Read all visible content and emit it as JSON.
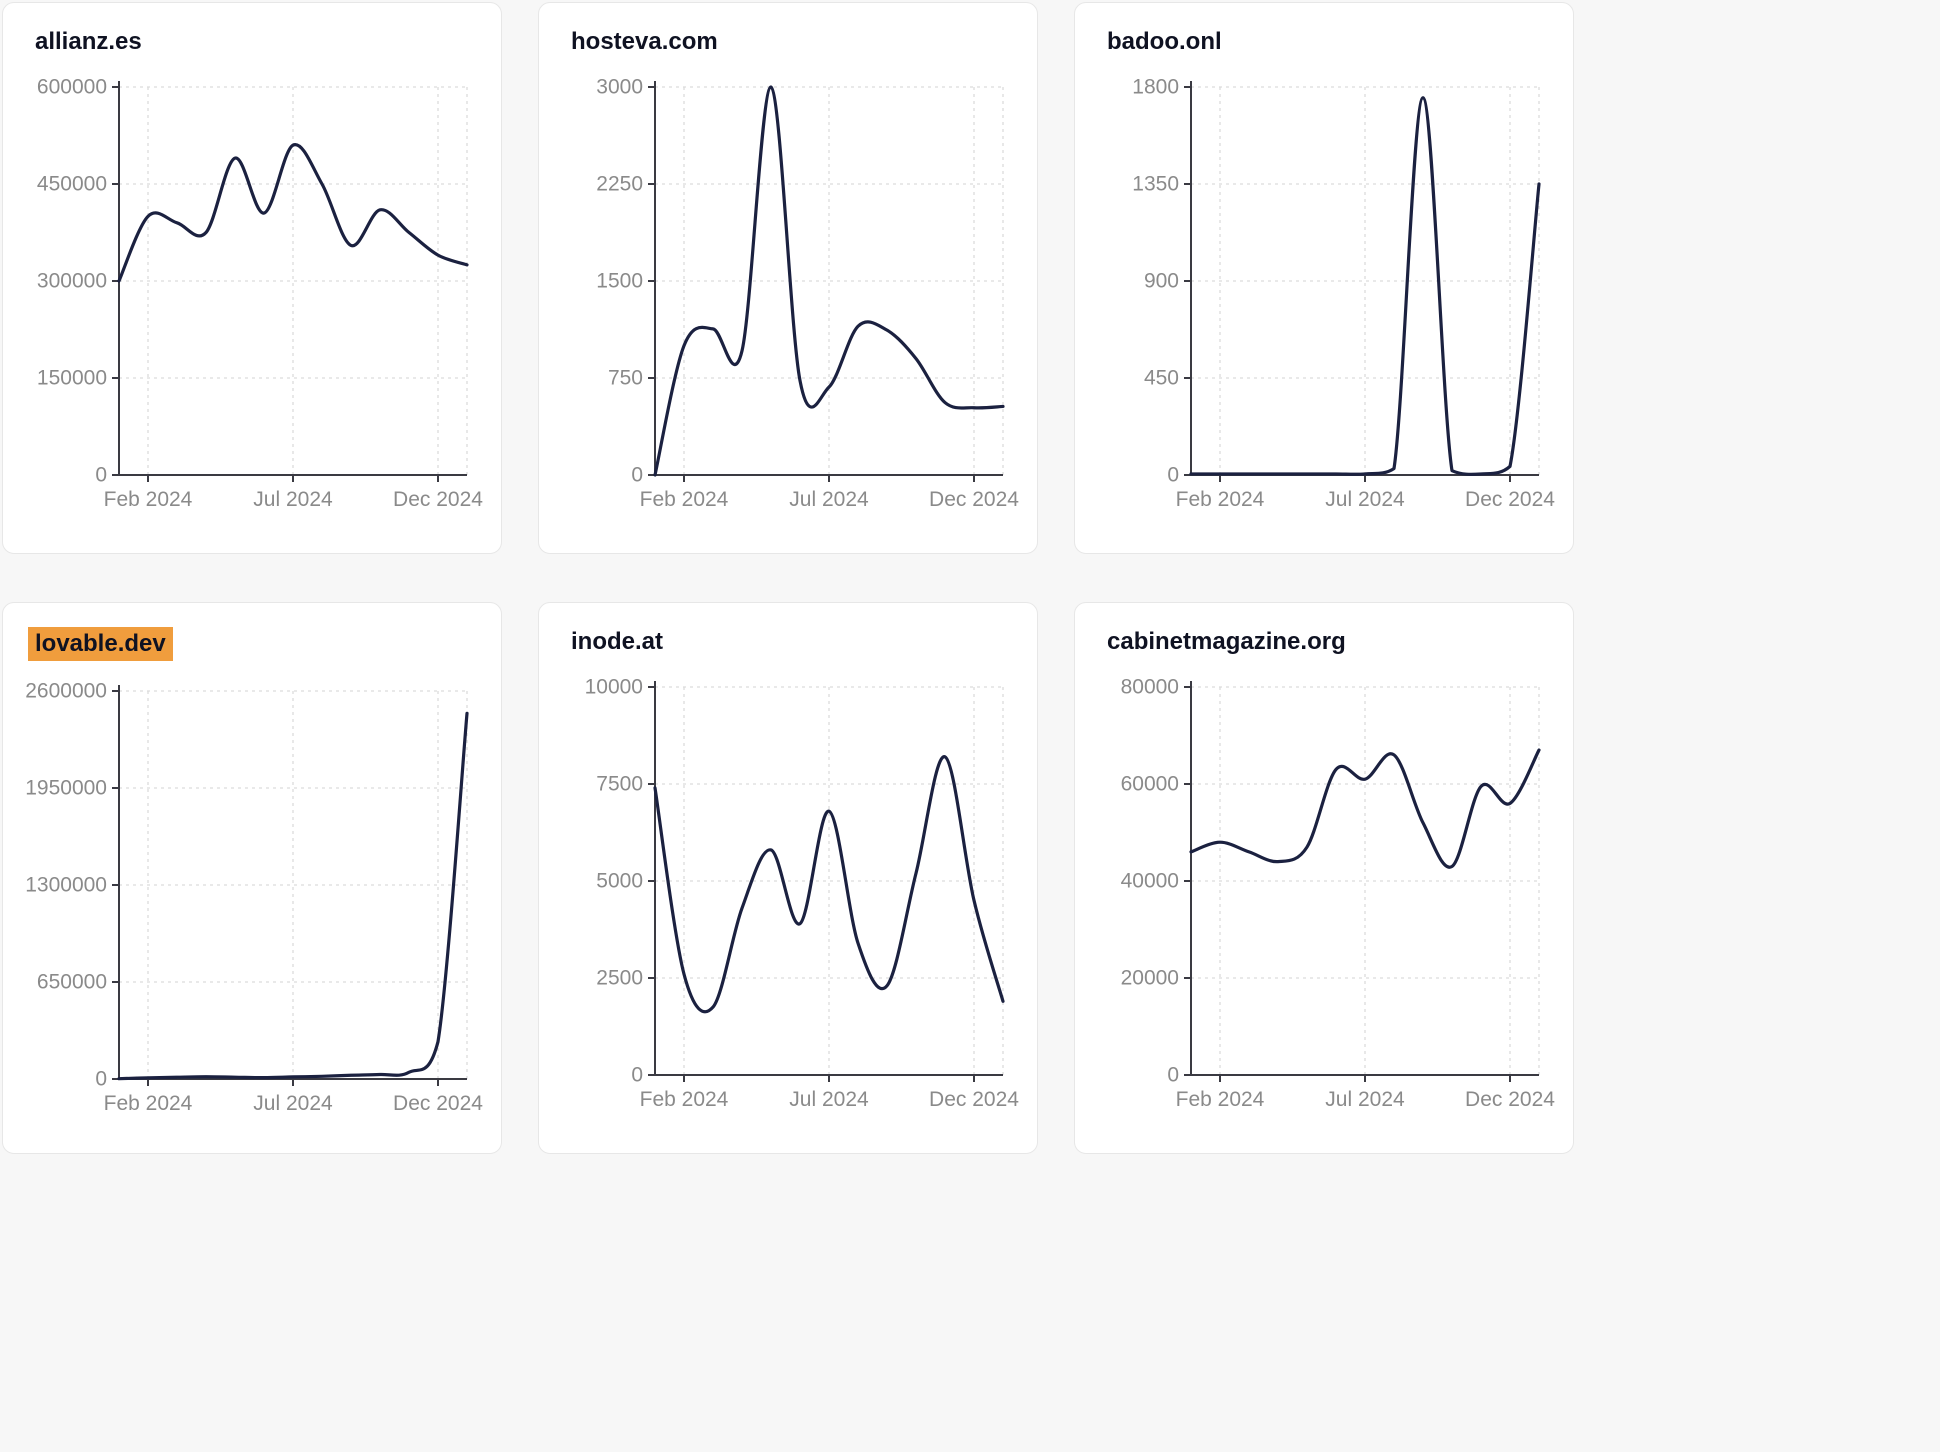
{
  "style": {
    "page_background": "#f7f7f7",
    "card_background": "#ffffff",
    "line_color": "#1b2140",
    "axis_color": "#3a3a42",
    "tick_color": "#8a8a8a",
    "grid_color": "#dcdcdc",
    "title_color": "#0f1222",
    "highlight_color": "#f09d3d"
  },
  "chart_data": [
    {
      "type": "line",
      "title": "allianz.es",
      "highlighted": false,
      "x": [
        "Jan 2024",
        "Feb 2024",
        "Mar 2024",
        "Apr 2024",
        "May 2024",
        "Jun 2024",
        "Jul 2024",
        "Aug 2024",
        "Sep 2024",
        "Oct 2024",
        "Nov 2024",
        "Dec 2024",
        "Jan 2025"
      ],
      "values": [
        300000,
        400000,
        390000,
        375000,
        490000,
        405000,
        510000,
        450000,
        355000,
        410000,
        375000,
        340000,
        325000
      ],
      "yticks": [
        0,
        150000,
        300000,
        450000,
        600000
      ],
      "ylim": [
        0,
        600000
      ],
      "x_tick_labels": [
        "Feb 2024",
        "Jul 2024",
        "Dec 2024"
      ],
      "x_tick_indices": [
        1,
        6,
        11
      ],
      "grid": true,
      "legend": "none"
    },
    {
      "type": "line",
      "title": "hosteva.com",
      "highlighted": false,
      "x": [
        "Jan 2024",
        "Feb 2024",
        "Mar 2024",
        "Apr 2024",
        "May 2024",
        "Jun 2024",
        "Jul 2024",
        "Aug 2024",
        "Sep 2024",
        "Oct 2024",
        "Nov 2024",
        "Dec 2024",
        "Jan 2025"
      ],
      "values": [
        0,
        1000,
        1130,
        960,
        3000,
        730,
        680,
        1150,
        1120,
        900,
        560,
        520,
        530
      ],
      "yticks": [
        0,
        750,
        1500,
        2250,
        3000
      ],
      "ylim": [
        0,
        3000
      ],
      "x_tick_labels": [
        "Feb 2024",
        "Jul 2024",
        "Dec 2024"
      ],
      "x_tick_indices": [
        1,
        6,
        11
      ],
      "grid": true,
      "legend": "none"
    },
    {
      "type": "line",
      "title": "badoo.onl",
      "highlighted": false,
      "x": [
        "Jan 2024",
        "Feb 2024",
        "Mar 2024",
        "Apr 2024",
        "May 2024",
        "Jun 2024",
        "Jul 2024",
        "Aug 2024",
        "Sep 2024",
        "Oct 2024",
        "Nov 2024",
        "Dec 2024",
        "Jan 2025"
      ],
      "values": [
        5,
        5,
        5,
        5,
        5,
        5,
        5,
        30,
        1750,
        20,
        5,
        40,
        1350
      ],
      "yticks": [
        0,
        450,
        900,
        1350,
        1800
      ],
      "ylim": [
        0,
        1800
      ],
      "x_tick_labels": [
        "Feb 2024",
        "Jul 2024",
        "Dec 2024"
      ],
      "x_tick_indices": [
        1,
        6,
        11
      ],
      "grid": true,
      "legend": "none"
    },
    {
      "type": "line",
      "title": "lovable.dev",
      "highlighted": true,
      "x": [
        "Jan 2024",
        "Feb 2024",
        "Mar 2024",
        "Apr 2024",
        "May 2024",
        "Jun 2024",
        "Jul 2024",
        "Aug 2024",
        "Sep 2024",
        "Oct 2024",
        "Nov 2024",
        "Dec 2024",
        "Jan 2025"
      ],
      "values": [
        2000,
        8000,
        12000,
        15000,
        12000,
        9000,
        14000,
        18000,
        25000,
        30000,
        45000,
        250000,
        2450000
      ],
      "yticks": [
        0,
        650000,
        1300000,
        1950000,
        2600000
      ],
      "ylim": [
        0,
        2600000
      ],
      "x_tick_labels": [
        "Feb 2024",
        "Jul 2024",
        "Dec 2024"
      ],
      "x_tick_indices": [
        1,
        6,
        11
      ],
      "grid": true,
      "legend": "none"
    },
    {
      "type": "line",
      "title": "inode.at",
      "highlighted": false,
      "x": [
        "Jan 2024",
        "Feb 2024",
        "Mar 2024",
        "Apr 2024",
        "May 2024",
        "Jun 2024",
        "Jul 2024",
        "Aug 2024",
        "Sep 2024",
        "Oct 2024",
        "Nov 2024",
        "Dec 2024",
        "Jan 2025"
      ],
      "values": [
        7400,
        2600,
        1750,
        4300,
        5800,
        3900,
        6800,
        3400,
        2300,
        5200,
        8200,
        4500,
        1900
      ],
      "yticks": [
        0,
        2500,
        5000,
        7500,
        10000
      ],
      "ylim": [
        0,
        10000
      ],
      "x_tick_labels": [
        "Feb 2024",
        "Jul 2024",
        "Dec 2024"
      ],
      "x_tick_indices": [
        1,
        6,
        11
      ],
      "grid": true,
      "legend": "none"
    },
    {
      "type": "line",
      "title": "cabinetmagazine.org",
      "highlighted": false,
      "x": [
        "Jan 2024",
        "Feb 2024",
        "Mar 2024",
        "Apr 2024",
        "May 2024",
        "Jun 2024",
        "Jul 2024",
        "Aug 2024",
        "Sep 2024",
        "Oct 2024",
        "Nov 2024",
        "Dec 2024",
        "Jan 2025"
      ],
      "values": [
        46000,
        48000,
        46000,
        44000,
        47000,
        63000,
        61000,
        66000,
        52000,
        43000,
        59500,
        56000,
        67000
      ],
      "yticks": [
        0,
        20000,
        40000,
        60000,
        80000
      ],
      "ylim": [
        0,
        80000
      ],
      "x_tick_labels": [
        "Feb 2024",
        "Jul 2024",
        "Dec 2024"
      ],
      "x_tick_indices": [
        1,
        6,
        11
      ],
      "grid": true,
      "legend": "none"
    }
  ]
}
